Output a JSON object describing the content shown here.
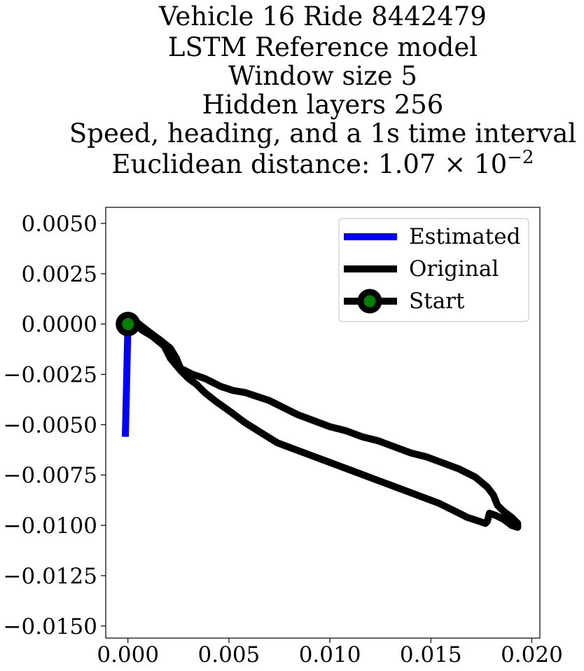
{
  "title_lines": [
    "Vehicle 16 Ride 8442479",
    "LSTM Reference model",
    "Window size 5",
    "Hidden layers 256",
    "Speed, heading, and a 1s time interval",
    "Euclidean distance: 1.07 × 10",
    "−2"
  ],
  "chart_data": {
    "type": "line",
    "title": "Vehicle 16 Ride 8442479 / LSTM Reference model / Window size 5 / Hidden layers 256 / Speed, heading, and a 1s time interval / Euclidean distance: 1.07 × 10^-2",
    "xlabel": "",
    "ylabel": "",
    "xlim": [
      -0.0011,
      0.0204
    ],
    "ylim": [
      -0.0156,
      0.0058
    ],
    "xticks": [
      "0.000",
      "0.005",
      "0.010",
      "0.015",
      "0.020"
    ],
    "xtick_values": [
      0.0,
      0.005,
      0.01,
      0.015,
      0.02
    ],
    "yticks": [
      "0.0050",
      "0.0025",
      "0.0000",
      "−0.0025",
      "−0.0050",
      "−0.0075",
      "−0.0100",
      "−0.0125",
      "−0.0150"
    ],
    "ytick_values": [
      0.005,
      0.0025,
      0.0,
      -0.0025,
      -0.005,
      -0.0075,
      -0.01,
      -0.0125,
      -0.015
    ],
    "grid": false,
    "legend_position": "top-right",
    "series": [
      {
        "name": "Estimated",
        "color": "#0000ff",
        "x": [
          -0.00013,
          0.0
        ],
        "y": [
          -0.0056,
          0.0
        ]
      },
      {
        "name": "Original",
        "color": "#000000",
        "x": [
          0.0,
          0.0003,
          0.0007,
          0.0012,
          0.0018,
          0.0021,
          0.0026,
          0.003,
          0.0034,
          0.0038,
          0.0043,
          0.005,
          0.0058,
          0.0066,
          0.0074,
          0.0082,
          0.009,
          0.0098,
          0.0106,
          0.0114,
          0.0122,
          0.013,
          0.0138,
          0.0146,
          0.0154,
          0.0162,
          0.0168,
          0.0174,
          0.0177,
          0.0178,
          0.0179,
          0.0182,
          0.0186,
          0.019,
          0.0193,
          0.0193,
          0.019,
          0.0186,
          0.0183,
          0.0181,
          0.0178,
          0.0172,
          0.0164,
          0.0156,
          0.0148,
          0.014,
          0.0132,
          0.0124,
          0.0116,
          0.0108,
          0.01,
          0.0092,
          0.0084,
          0.0078,
          0.0074,
          0.007,
          0.0064,
          0.0058,
          0.0052,
          0.0046,
          0.0042,
          0.0038,
          0.0032,
          0.0026,
          0.0024,
          0.0021,
          0.0016,
          0.0012,
          0.0008,
          0.0003,
          0.0,
          0.0002
        ],
        "y": [
          0.0,
          0.0,
          -0.0003,
          -0.0006,
          -0.0011,
          -0.0017,
          -0.0023,
          -0.0027,
          -0.003,
          -0.0034,
          -0.0038,
          -0.0043,
          -0.0049,
          -0.0054,
          -0.0059,
          -0.0062,
          -0.0065,
          -0.0068,
          -0.0071,
          -0.0074,
          -0.0077,
          -0.008,
          -0.0083,
          -0.0086,
          -0.0089,
          -0.0093,
          -0.0096,
          -0.0098,
          -0.0099,
          -0.0098,
          -0.0094,
          -0.0095,
          -0.0097,
          -0.01,
          -0.0101,
          -0.0099,
          -0.0096,
          -0.0093,
          -0.009,
          -0.0085,
          -0.0081,
          -0.0076,
          -0.0072,
          -0.0069,
          -0.0066,
          -0.0064,
          -0.0061,
          -0.0058,
          -0.0056,
          -0.0053,
          -0.0051,
          -0.0048,
          -0.0045,
          -0.0042,
          -0.004,
          -0.0038,
          -0.0036,
          -0.0034,
          -0.0033,
          -0.0031,
          -0.0029,
          -0.0027,
          -0.0025,
          -0.0022,
          -0.0017,
          -0.0012,
          -0.0008,
          -0.0005,
          -0.0002,
          0.0002,
          0.0,
          0.0
        ]
      },
      {
        "name": "Start",
        "color": "#008000",
        "edgecolor": "#000000",
        "x": [
          0.0
        ],
        "y": [
          0.0
        ]
      }
    ]
  }
}
